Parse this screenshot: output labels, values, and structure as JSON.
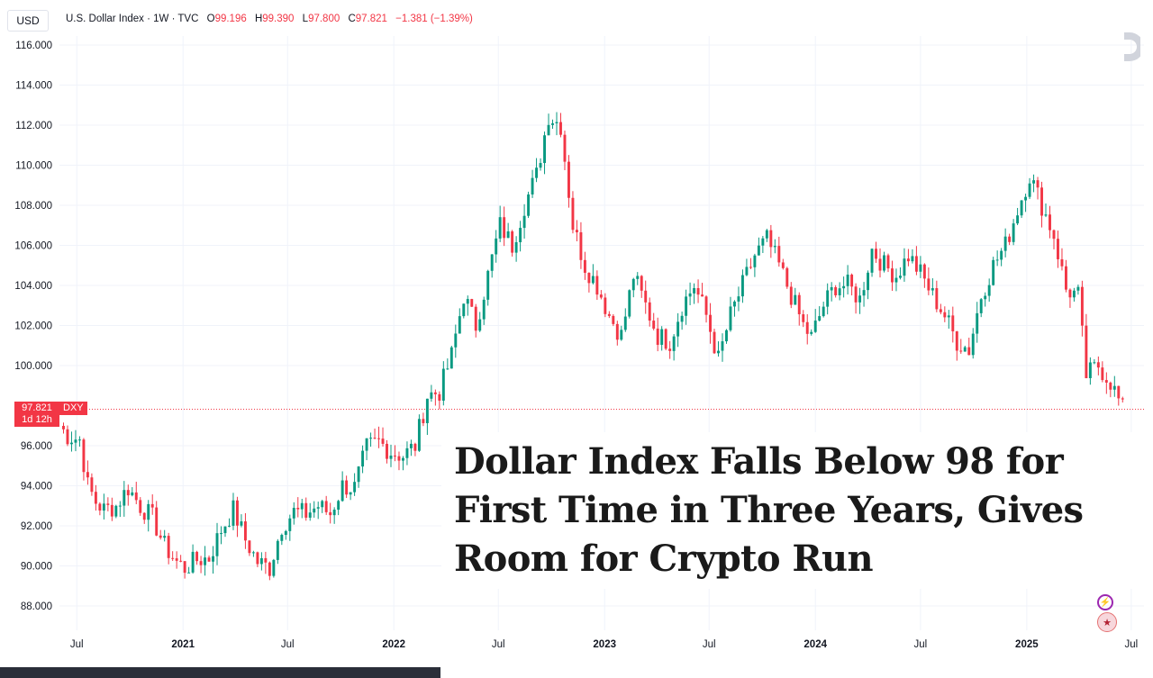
{
  "header": {
    "currency": "USD",
    "symbol_desc": "U.S. Dollar Index · 1W · TVC",
    "open_label": "O",
    "open_value": "99.196",
    "high_label": "H",
    "high_value": "99.390",
    "low_label": "L",
    "low_value": "97.800",
    "close_label": "C",
    "close_value": "97.821",
    "change": "−1.381 (−1.39%)"
  },
  "headline": "Dollar Index Falls Below 98 for First Time in Three Years, Gives Room for Crypto Run",
  "price_tag": {
    "price": "97.821",
    "countdown": "1d 12h",
    "symbol": "DXY"
  },
  "colors": {
    "up": "#089981",
    "down": "#f23645",
    "grid": "#f0f3fa",
    "axis_text": "#131722"
  },
  "icons": {
    "logo": "tradingview-logo-icon",
    "badge1": "lightning-icon",
    "badge2": "us-flag-icon"
  },
  "chart_data": {
    "type": "candlestick",
    "title": "U.S. Dollar Index · 1W · TVC",
    "ylim": [
      87,
      117
    ],
    "y_ticks": [
      "116.000",
      "114.000",
      "112.000",
      "110.000",
      "108.000",
      "106.000",
      "104.000",
      "102.000",
      "100.000",
      "96.000",
      "94.000",
      "92.000",
      "90.000",
      "88.000"
    ],
    "x_labels": [
      "Jul",
      "2021",
      "Jul",
      "2022",
      "Jul",
      "2023",
      "Jul",
      "2024",
      "Jul",
      "2025",
      "Jul"
    ],
    "x_label_dates": [
      "2020-07",
      "2021-01",
      "2021-07",
      "2022-01",
      "2022-07",
      "2023-01",
      "2023-07",
      "2024-01",
      "2024-07",
      "2025-01",
      "2025-07"
    ],
    "x_range": [
      "2020-06-01",
      "2025-07-23"
    ],
    "last_price": 97.821,
    "close_path": [
      [
        "2020-06-01",
        97.0
      ],
      [
        "2020-06-15",
        96.5
      ],
      [
        "2020-07-06",
        96.3
      ],
      [
        "2020-07-20",
        94.0
      ],
      [
        "2020-08-03",
        93.2
      ],
      [
        "2020-08-17",
        92.8
      ],
      [
        "2020-09-07",
        93.0
      ],
      [
        "2020-09-28",
        93.9
      ],
      [
        "2020-10-19",
        93.0
      ],
      [
        "2020-11-09",
        92.4
      ],
      [
        "2020-11-30",
        91.0
      ],
      [
        "2020-12-21",
        90.2
      ],
      [
        "2021-01-04",
        89.9
      ],
      [
        "2021-01-25",
        90.3
      ],
      [
        "2021-02-15",
        90.4
      ],
      [
        "2021-03-08",
        91.8
      ],
      [
        "2021-03-29",
        92.8
      ],
      [
        "2021-04-19",
        91.3
      ],
      [
        "2021-05-10",
        90.2
      ],
      [
        "2021-05-31",
        89.9
      ],
      [
        "2021-06-21",
        92.0
      ],
      [
        "2021-07-12",
        92.7
      ],
      [
        "2021-08-02",
        92.6
      ],
      [
        "2021-08-23",
        93.0
      ],
      [
        "2021-09-13",
        92.6
      ],
      [
        "2021-10-04",
        94.0
      ],
      [
        "2021-10-25",
        93.9
      ],
      [
        "2021-11-15",
        95.9
      ],
      [
        "2021-12-06",
        96.2
      ],
      [
        "2021-12-27",
        95.7
      ],
      [
        "2022-01-17",
        95.5
      ],
      [
        "2022-02-07",
        96.0
      ],
      [
        "2022-02-28",
        98.5
      ],
      [
        "2022-03-21",
        98.7
      ],
      [
        "2022-04-11",
        100.5
      ],
      [
        "2022-05-02",
        103.5
      ],
      [
        "2022-05-23",
        102.0
      ],
      [
        "2022-06-13",
        104.5
      ],
      [
        "2022-07-04",
        107.0
      ],
      [
        "2022-07-25",
        106.0
      ],
      [
        "2022-08-15",
        108.0
      ],
      [
        "2022-09-05",
        109.5
      ],
      [
        "2022-09-26",
        112.5
      ],
      [
        "2022-10-17",
        112.0
      ],
      [
        "2022-11-07",
        107.0
      ],
      [
        "2022-11-28",
        105.0
      ],
      [
        "2022-12-19",
        104.0
      ],
      [
        "2023-01-09",
        102.5
      ],
      [
        "2023-01-30",
        101.5
      ],
      [
        "2023-02-20",
        104.5
      ],
      [
        "2023-03-13",
        103.0
      ],
      [
        "2023-04-03",
        101.5
      ],
      [
        "2023-04-24",
        101.2
      ],
      [
        "2023-05-15",
        103.0
      ],
      [
        "2023-06-05",
        104.0
      ],
      [
        "2023-06-26",
        102.5
      ],
      [
        "2023-07-17",
        100.3
      ],
      [
        "2023-08-07",
        102.5
      ],
      [
        "2023-08-28",
        104.0
      ],
      [
        "2023-09-18",
        105.5
      ],
      [
        "2023-10-09",
        106.3
      ],
      [
        "2023-10-30",
        105.0
      ],
      [
        "2023-11-20",
        103.5
      ],
      [
        "2023-12-11",
        102.0
      ],
      [
        "2023-12-25",
        101.4
      ],
      [
        "2024-01-15",
        103.0
      ],
      [
        "2024-02-05",
        104.0
      ],
      [
        "2024-02-26",
        104.0
      ],
      [
        "2024-03-18",
        103.3
      ],
      [
        "2024-04-08",
        105.8
      ],
      [
        "2024-04-29",
        105.0
      ],
      [
        "2024-05-20",
        104.5
      ],
      [
        "2024-06-10",
        105.5
      ],
      [
        "2024-07-01",
        104.6
      ],
      [
        "2024-07-22",
        103.5
      ],
      [
        "2024-08-12",
        102.5
      ],
      [
        "2024-09-02",
        101.2
      ],
      [
        "2024-09-23",
        100.8
      ],
      [
        "2024-10-14",
        103.5
      ],
      [
        "2024-11-04",
        105.0
      ],
      [
        "2024-11-25",
        106.0
      ],
      [
        "2024-12-16",
        107.8
      ],
      [
        "2025-01-06",
        109.5
      ],
      [
        "2025-01-27",
        108.0
      ],
      [
        "2025-02-17",
        106.5
      ],
      [
        "2025-03-10",
        103.8
      ],
      [
        "2025-03-31",
        103.5
      ],
      [
        "2025-04-14",
        99.5
      ],
      [
        "2025-05-05",
        100.0
      ],
      [
        "2025-05-26",
        99.2
      ],
      [
        "2025-06-16",
        97.8
      ]
    ]
  }
}
